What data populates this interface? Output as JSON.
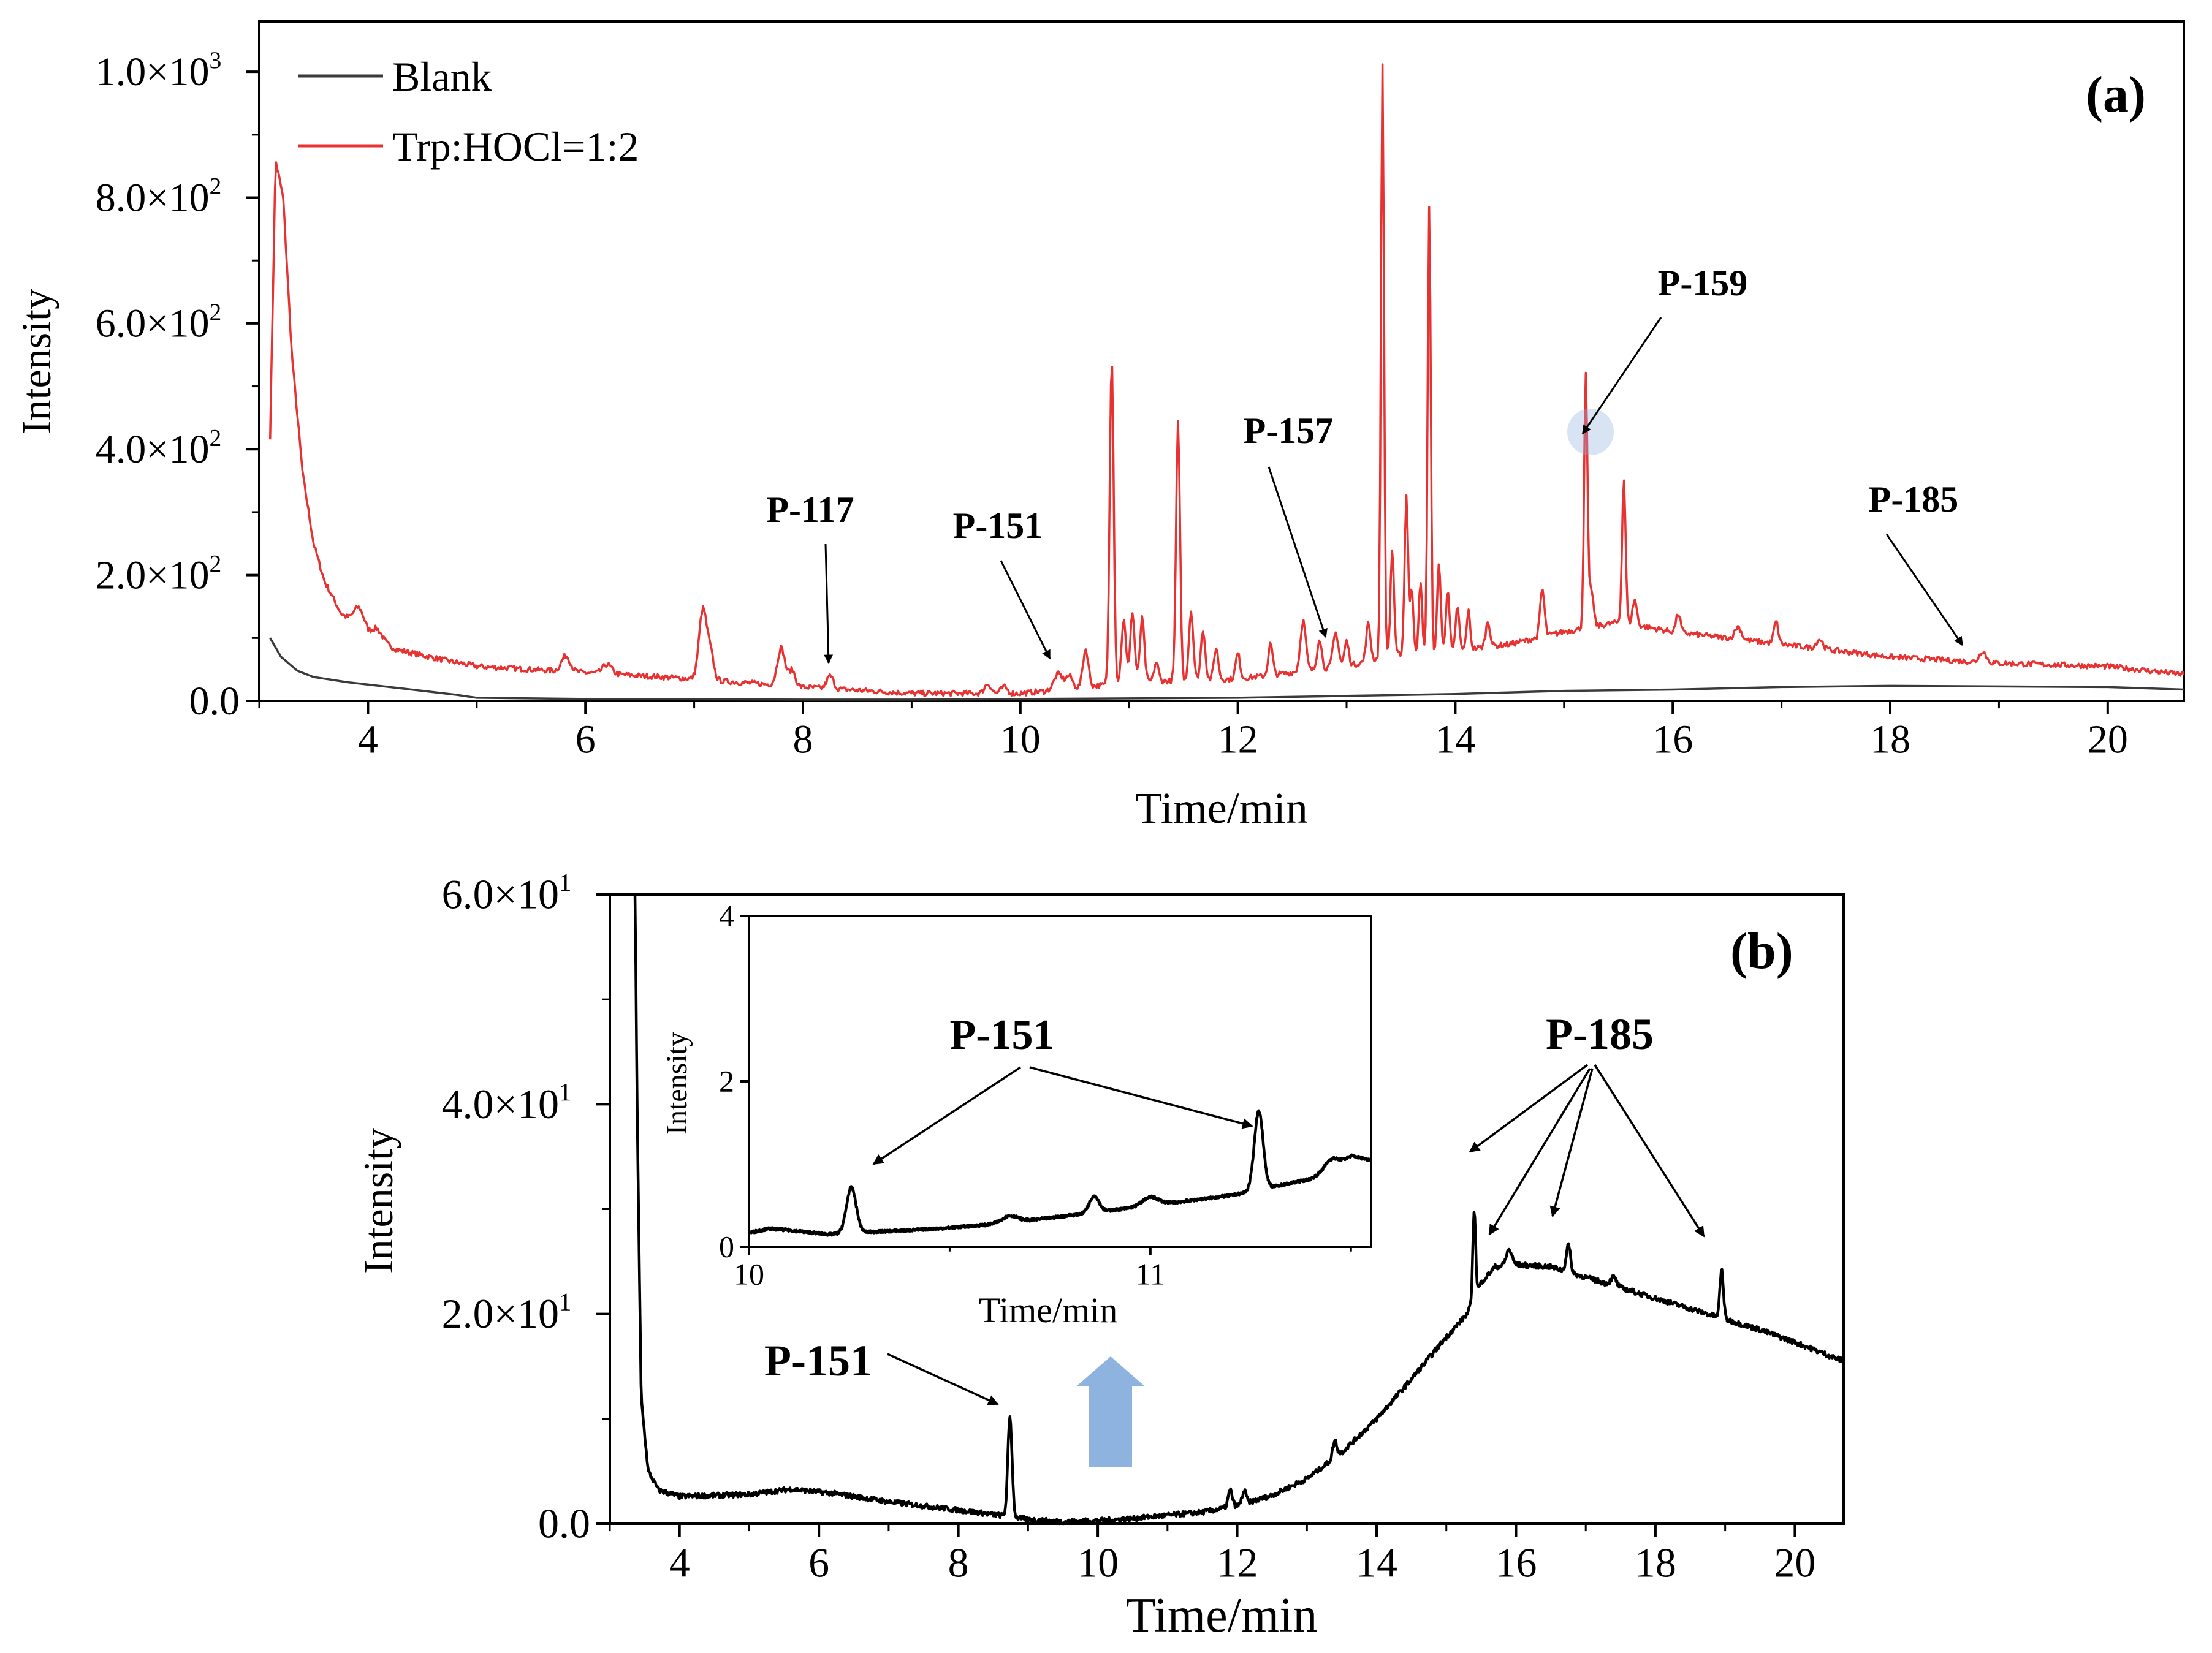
{
  "chart_data": [
    {
      "panel": "(a)",
      "type": "line",
      "xlabel": "Time/min",
      "ylabel": "Intensity",
      "xlim": [
        3.0,
        20.7
      ],
      "ylim": [
        0,
        1080
      ],
      "xticks": [
        4,
        6,
        8,
        10,
        12,
        14,
        16,
        18,
        20
      ],
      "xtick_labels": [
        "4",
        "6",
        "8",
        "10",
        "12",
        "14",
        "16",
        "18",
        "20"
      ],
      "yticks": [
        0,
        200,
        400,
        600,
        800,
        1000
      ],
      "ytick_labels": [
        {
          "mant": "0.0",
          "exp": ""
        },
        {
          "mant": "2.0×10",
          "exp": "2"
        },
        {
          "mant": "4.0×10",
          "exp": "2"
        },
        {
          "mant": "6.0×10",
          "exp": "2"
        },
        {
          "mant": "8.0×10",
          "exp": "2"
        },
        {
          "mant": "1.0×10",
          "exp": "3"
        }
      ],
      "legend": {
        "position": "top-left",
        "entries": [
          "Blank",
          "Trp:HOCl=1:2"
        ]
      },
      "series": [
        {
          "name": "Blank",
          "color": "#3a3a3a",
          "points": [
            [
              3.1,
              100
            ],
            [
              3.2,
              70
            ],
            [
              3.35,
              48
            ],
            [
              3.5,
              38
            ],
            [
              3.8,
              30
            ],
            [
              4.2,
              22
            ],
            [
              4.8,
              10
            ],
            [
              5.0,
              5
            ],
            [
              6,
              3
            ],
            [
              8,
              2
            ],
            [
              9,
              2
            ],
            [
              10,
              3
            ],
            [
              11,
              4
            ],
            [
              12,
              5
            ],
            [
              13,
              8
            ],
            [
              14,
              11
            ],
            [
              15,
              16
            ],
            [
              16,
              18
            ],
            [
              17,
              22
            ],
            [
              18,
              24
            ],
            [
              19,
              23
            ],
            [
              20,
              22
            ],
            [
              20.7,
              18
            ]
          ]
        },
        {
          "name": "Trp:HOCl=1:2",
          "color": "#e83232",
          "baseline": [
            [
              3.1,
              420
            ],
            [
              3.15,
              860
            ],
            [
              3.22,
              800
            ],
            [
              3.3,
              550
            ],
            [
              3.4,
              360
            ],
            [
              3.5,
              250
            ],
            [
              3.6,
              190
            ],
            [
              3.75,
              140
            ],
            [
              4.0,
              100
            ],
            [
              4.3,
              80
            ],
            [
              4.7,
              65
            ],
            [
              5,
              55
            ],
            [
              6,
              45
            ],
            [
              7,
              35
            ],
            [
              8,
              22
            ],
            [
              9,
              12
            ],
            [
              10,
              12
            ],
            [
              10.5,
              20
            ],
            [
              11,
              30
            ],
            [
              12,
              35
            ],
            [
              12.5,
              45
            ],
            [
              13,
              55
            ],
            [
              13.5,
              75
            ],
            [
              14,
              80
            ],
            [
              14.5,
              90
            ],
            [
              15,
              110
            ],
            [
              15.5,
              125
            ],
            [
              16,
              110
            ],
            [
              17,
              90
            ],
            [
              18,
              70
            ],
            [
              19,
              60
            ],
            [
              20,
              55
            ],
            [
              20.7,
              42
            ]
          ],
          "peaks": [
            [
              3.92,
              35,
              0.05
            ],
            [
              4.08,
              20,
              0.05
            ],
            [
              5.82,
              25,
              0.04
            ],
            [
              6.2,
              15,
              0.04
            ],
            [
              7.08,
              110,
              0.035
            ],
            [
              7.15,
              40,
              0.03
            ],
            [
              7.8,
              60,
              0.035
            ],
            [
              7.9,
              25,
              0.03
            ],
            [
              8.25,
              20,
              0.03
            ],
            [
              9.7,
              15,
              0.03
            ],
            [
              9.85,
              10,
              0.03
            ],
            [
              10.35,
              25,
              0.04
            ],
            [
              10.45,
              20,
              0.03
            ],
            [
              10.6,
              60,
              0.025
            ],
            [
              10.84,
              520,
              0.018
            ],
            [
              10.95,
              100,
              0.02
            ],
            [
              11.03,
              110,
              0.02
            ],
            [
              11.12,
              100,
              0.02
            ],
            [
              11.25,
              30,
              0.02
            ],
            [
              11.45,
              410,
              0.018
            ],
            [
              11.57,
              110,
              0.02
            ],
            [
              11.68,
              80,
              0.02
            ],
            [
              11.8,
              50,
              0.02
            ],
            [
              12.0,
              40,
              0.02
            ],
            [
              12.3,
              50,
              0.02
            ],
            [
              12.6,
              80,
              0.025
            ],
            [
              12.75,
              50,
              0.02
            ],
            [
              12.9,
              55,
              0.025
            ],
            [
              13.0,
              40,
              0.02
            ],
            [
              13.2,
              60,
              0.02
            ],
            [
              13.33,
              940,
              0.014
            ],
            [
              13.42,
              170,
              0.016
            ],
            [
              13.55,
              250,
              0.016
            ],
            [
              13.6,
              100,
              0.015
            ],
            [
              13.68,
              110,
              0.015
            ],
            [
              13.76,
              710,
              0.014
            ],
            [
              13.85,
              140,
              0.016
            ],
            [
              13.93,
              100,
              0.016
            ],
            [
              14.02,
              70,
              0.016
            ],
            [
              14.12,
              60,
              0.016
            ],
            [
              14.3,
              40,
              0.02
            ],
            [
              14.8,
              75,
              0.02
            ],
            [
              15.2,
              400,
              0.015
            ],
            [
              15.25,
              60,
              0.02
            ],
            [
              15.55,
              230,
              0.016
            ],
            [
              15.65,
              40,
              0.02
            ],
            [
              16.05,
              30,
              0.02
            ],
            [
              16.6,
              20,
              0.03
            ],
            [
              16.95,
              35,
              0.02
            ],
            [
              17.35,
              15,
              0.03
            ],
            [
              18.85,
              18,
              0.03
            ]
          ]
        }
      ],
      "annotations": [
        "P-117",
        "P-151",
        "P-157",
        "P-159",
        "P-185"
      ]
    },
    {
      "panel": "(b)",
      "type": "line",
      "xlabel": "Time/min",
      "ylabel": "Intensity",
      "xlim": [
        3.0,
        20.7
      ],
      "ylim": [
        0,
        60
      ],
      "xticks": [
        4,
        6,
        8,
        10,
        12,
        14,
        16,
        18,
        20
      ],
      "xtick_labels": [
        "4",
        "6",
        "8",
        "10",
        "12",
        "14",
        "16",
        "18",
        "20"
      ],
      "yticks": [
        0,
        20,
        40,
        60
      ],
      "ytick_labels": [
        {
          "mant": "0.0",
          "exp": ""
        },
        {
          "mant": "2.0×10",
          "exp": "1"
        },
        {
          "mant": "4.0×10",
          "exp": "1"
        },
        {
          "mant": "6.0×10",
          "exp": "1"
        }
      ],
      "series": [
        {
          "name": "Trp:HOCl=1:2",
          "color": "#000000",
          "baseline": [
            [
              3.35,
              60
            ],
            [
              3.4,
              35
            ],
            [
              3.45,
              12
            ],
            [
              3.55,
              5
            ],
            [
              3.7,
              3.2
            ],
            [
              4,
              2.6
            ],
            [
              5,
              2.8
            ],
            [
              5.6,
              3.3
            ],
            [
              6.2,
              2.9
            ],
            [
              7,
              2.1
            ],
            [
              8,
              1.3
            ],
            [
              8.6,
              0.8
            ],
            [
              9,
              0.4
            ],
            [
              9.5,
              0.2
            ],
            [
              10,
              0.3
            ],
            [
              10.5,
              0.5
            ],
            [
              11,
              0.8
            ],
            [
              11.5,
              1.1
            ],
            [
              12,
              1.7
            ],
            [
              12.5,
              2.7
            ],
            [
              13,
              4.3
            ],
            [
              13.5,
              6.8
            ],
            [
              14,
              10
            ],
            [
              14.5,
              13.8
            ],
            [
              15,
              17.8
            ],
            [
              15.3,
              20
            ],
            [
              15.5,
              23
            ],
            [
              15.7,
              24.5
            ],
            [
              16,
              24.7
            ],
            [
              16.5,
              24.5
            ],
            [
              17,
              23.5
            ],
            [
              17.5,
              22.5
            ],
            [
              18,
              21.5
            ],
            [
              18.5,
              20.5
            ],
            [
              19,
              19.5
            ],
            [
              19.5,
              18.5
            ],
            [
              20,
              17.3
            ],
            [
              20.7,
              15.5
            ]
          ],
          "peaks": [
            [
              3.21,
              60,
              0.04
            ],
            [
              3.28,
              60,
              0.04
            ],
            [
              8.74,
              9.5,
              0.03
            ],
            [
              11.9,
              1.6,
              0.03
            ],
            [
              12.1,
              1.2,
              0.03
            ],
            [
              13.4,
              1.6,
              0.03
            ],
            [
              15.4,
              8.5,
              0.02
            ],
            [
              15.9,
              1.5,
              0.04
            ],
            [
              16.75,
              2.6,
              0.03
            ],
            [
              17.4,
              0.8,
              0.04
            ],
            [
              18.95,
              4.6,
              0.025
            ]
          ]
        }
      ],
      "annotations": [
        "P-151",
        "P-185"
      ]
    },
    {
      "panel": "inset",
      "type": "line",
      "xlabel": "Time/min",
      "ylabel": "Intensity",
      "xlim": [
        10.0,
        11.55
      ],
      "ylim": [
        0,
        4
      ],
      "xticks": [
        10,
        11
      ],
      "xtick_labels": [
        "10",
        "11"
      ],
      "yticks": [
        0,
        2,
        4
      ],
      "ytick_labels": [
        {
          "mant": "0",
          "exp": ""
        },
        {
          "mant": "2",
          "exp": ""
        },
        {
          "mant": "4",
          "exp": ""
        }
      ],
      "series": [
        {
          "name": "Trp:HOCl=1:2",
          "color": "#000000",
          "baseline": [
            [
              10.0,
              0.17
            ],
            [
              10.05,
              0.22
            ],
            [
              10.1,
              0.2
            ],
            [
              10.2,
              0.15
            ],
            [
              10.3,
              0.18
            ],
            [
              10.4,
              0.2
            ],
            [
              10.5,
              0.23
            ],
            [
              10.6,
              0.27
            ],
            [
              10.7,
              0.32
            ],
            [
              10.8,
              0.38
            ],
            [
              10.9,
              0.44
            ],
            [
              11.0,
              0.5
            ],
            [
              11.1,
              0.56
            ],
            [
              11.2,
              0.62
            ],
            [
              11.3,
              0.72
            ],
            [
              11.4,
              0.82
            ],
            [
              11.5,
              1.1
            ],
            [
              11.55,
              1.05
            ]
          ],
          "peaks": [
            [
              10.255,
              0.55,
              0.012
            ],
            [
              10.65,
              0.08,
              0.02
            ],
            [
              10.86,
              0.2,
              0.012
            ],
            [
              11.0,
              0.1,
              0.02
            ],
            [
              11.27,
              0.95,
              0.011
            ],
            [
              11.45,
              0.1,
              0.015
            ]
          ]
        }
      ],
      "annotations": [
        "P-151"
      ]
    }
  ],
  "annotations": {
    "a_panel": "(a)",
    "b_panel": "(b)",
    "a_p117": "P-117",
    "a_p151": "P-151",
    "a_p157": "P-157",
    "a_p159": "P-159",
    "a_p185": "P-185",
    "b_p151": "P-151",
    "b_p185": "P-185",
    "inset_p151": "P-151"
  },
  "colors": {
    "blank": "#3a3a3a",
    "trp": "#e83232",
    "axis": "#000000",
    "arrow_highlight": "#8fb3df"
  }
}
